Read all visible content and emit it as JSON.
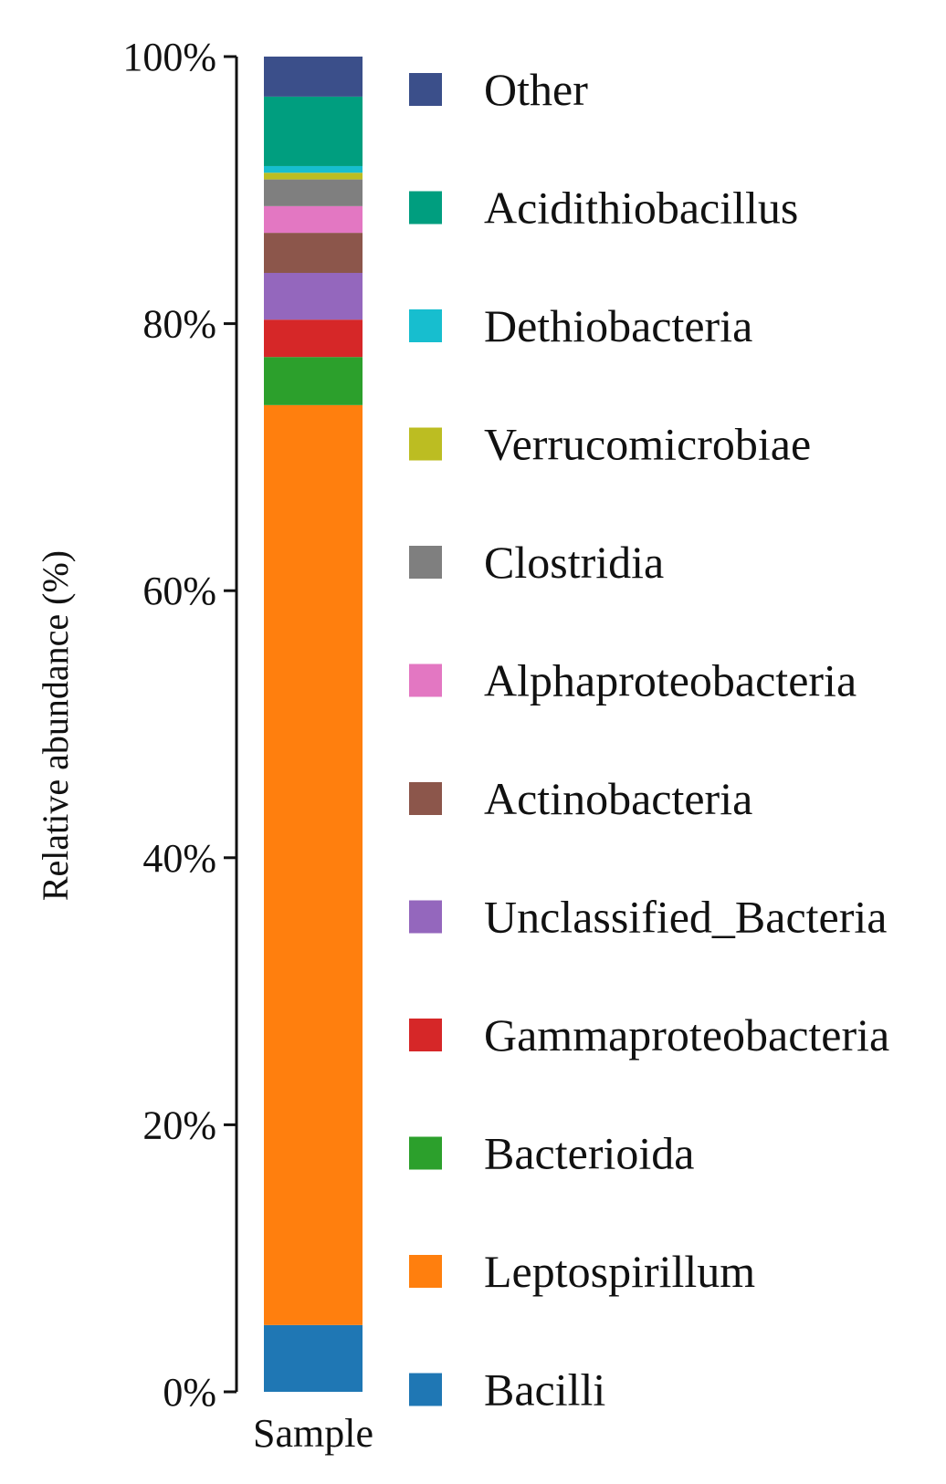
{
  "chart_data": {
    "type": "bar",
    "stacked": true,
    "categories": [
      "Sample"
    ],
    "ylabel": "Relative abundance (%)",
    "xlabel": "",
    "ylim": [
      0,
      100
    ],
    "yticks": [
      0,
      20,
      40,
      60,
      80,
      100
    ],
    "ytick_labels": [
      "0%",
      "20%",
      "40%",
      "60%",
      "80%",
      "100%"
    ],
    "legend_position": "right",
    "series": [
      {
        "name": "Bacilli",
        "color": "#1f77b4",
        "values": [
          5.0
        ]
      },
      {
        "name": "Leptospirillum",
        "color": "#ff7f0e",
        "values": [
          68.9
        ]
      },
      {
        "name": "Bacterioida",
        "color": "#2ca02c",
        "values": [
          3.6
        ]
      },
      {
        "name": "Gammaproteobacteria",
        "color": "#d62728",
        "values": [
          2.8
        ]
      },
      {
        "name": "Unclassified_Bacteria",
        "color": "#9467bd",
        "values": [
          3.5
        ]
      },
      {
        "name": "Actinobacteria",
        "color": "#8c564b",
        "values": [
          3.0
        ]
      },
      {
        "name": "Alphaproteobacteria",
        "color": "#e377c2",
        "values": [
          2.0
        ]
      },
      {
        "name": "Clostridia",
        "color": "#7f7f7f",
        "values": [
          2.0
        ]
      },
      {
        "name": "Verrucomicrobiae",
        "color": "#bcbd22",
        "values": [
          0.5
        ]
      },
      {
        "name": "Dethiobacteria",
        "color": "#17becf",
        "values": [
          0.5
        ]
      },
      {
        "name": "Acidithiobacillus",
        "color": "#009e7f",
        "values": [
          5.2
        ]
      },
      {
        "name": "Other",
        "color": "#3b4f8a",
        "values": [
          3.0
        ]
      }
    ]
  }
}
